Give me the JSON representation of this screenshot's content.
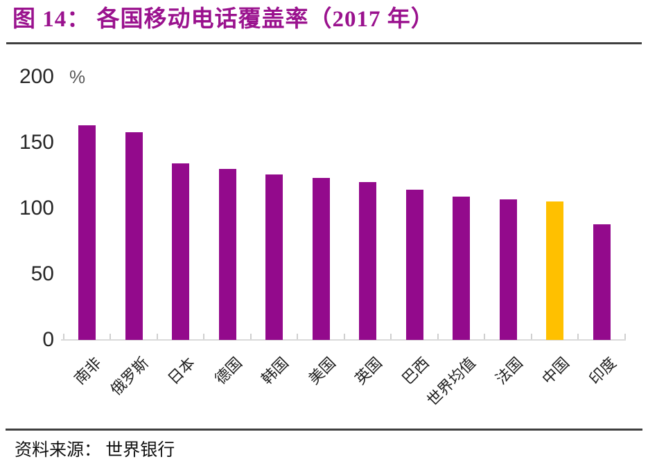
{
  "title": "图 14：  各国移动电话覆盖率（2017 年）",
  "source": "资料来源：  世界银行",
  "colors": {
    "title_purple": "#9a128e",
    "bar_purple": "#930a8c",
    "highlight_gold": "#ffc000",
    "axis_gray": "#d9d9d9",
    "unit_gray": "#595959",
    "separator_dark": "#3f3f3f"
  },
  "chart_data": {
    "type": "bar",
    "title": "各国移动电话覆盖率（2017 年）",
    "unit": "%",
    "xlabel": "",
    "ylabel": "%",
    "categories": [
      "南非",
      "俄罗斯",
      "日本",
      "德国",
      "韩国",
      "美国",
      "英国",
      "巴西",
      "世界均值",
      "法国",
      "中国",
      "印度"
    ],
    "values": [
      163,
      158,
      134,
      130,
      126,
      123,
      120,
      114,
      109,
      107,
      105,
      88
    ],
    "ylim": [
      0,
      200
    ],
    "yticks": [
      0,
      50,
      100,
      150,
      200
    ],
    "grid": false,
    "legend": false,
    "highlight_category": "中国",
    "bar_color": "#930a8c",
    "highlight_color": "#ffc000"
  }
}
